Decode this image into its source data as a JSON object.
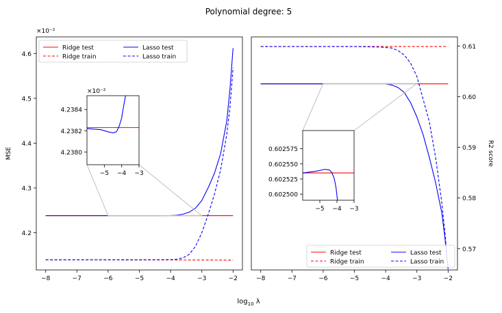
{
  "figure": {
    "suptitle": "Polynomial degree: 5",
    "xlabel": "log$_{10}$ λ",
    "xlabel_display": "log10 λ"
  },
  "colors": {
    "ridge": "#ff0000",
    "lasso": "#0000ff",
    "zoom_lines": "#bfbfbf",
    "axes": "#000000"
  },
  "chart_data": [
    {
      "id": "mse",
      "type": "line",
      "title": "",
      "xlabel": "log10 λ",
      "ylabel": "MSE",
      "offset_text": "×10⁻²",
      "xlim": [
        -8.3,
        -1.7
      ],
      "ylim": [
        4.117,
        4.637
      ],
      "xticks": [
        -8,
        -7,
        -6,
        -5,
        -4,
        -3,
        -2
      ],
      "xtick_labels": [
        "−8",
        "−7",
        "−6",
        "−5",
        "−4",
        "−3",
        "−2"
      ],
      "yticks": [
        4.2,
        4.3,
        4.4,
        4.5,
        4.6
      ],
      "ytick_labels": [
        "4.2",
        "4.3",
        "4.4",
        "4.5",
        "4.6"
      ],
      "legend": {
        "location": "upper-left",
        "ncol": 2
      },
      "series": [
        {
          "name": "Ridge test",
          "color": "#ff0000",
          "dash": "solid",
          "x": [
            -8,
            -6,
            -4,
            -3,
            -2
          ],
          "y": [
            4.2382,
            4.2382,
            4.2382,
            4.2382,
            4.2382
          ]
        },
        {
          "name": "Ridge train",
          "color": "#ff0000",
          "dash": "dashed",
          "x": [
            -8,
            -6,
            -4,
            -3,
            -2
          ],
          "y": [
            4.1395,
            4.1395,
            4.1394,
            4.1392,
            4.139
          ]
        },
        {
          "name": "Lasso test",
          "color": "#0000ff",
          "dash": "solid",
          "x": [
            -8,
            -6,
            -5,
            -4.5,
            -4,
            -3.8,
            -3.6,
            -3.4,
            -3.2,
            -3.0,
            -2.8,
            -2.6,
            -2.4,
            -2.2,
            -2.1,
            -2.0
          ],
          "y": [
            4.2381,
            4.2381,
            4.2381,
            4.2381,
            4.2383,
            4.2392,
            4.2415,
            4.246,
            4.255,
            4.272,
            4.3,
            4.332,
            4.376,
            4.45,
            4.52,
            4.612
          ]
        },
        {
          "name": "Lasso train",
          "color": "#0000ff",
          "dash": "dashed",
          "x": [
            -8,
            -6,
            -5,
            -4.5,
            -4,
            -3.8,
            -3.6,
            -3.4,
            -3.2,
            -3.0,
            -2.8,
            -2.6,
            -2.4,
            -2.2,
            -2.1,
            -2.0
          ],
          "y": [
            4.1397,
            4.1397,
            4.1397,
            4.1398,
            4.14,
            4.141,
            4.144,
            4.152,
            4.17,
            4.2,
            4.24,
            4.285,
            4.34,
            4.42,
            4.48,
            4.568
          ]
        }
      ],
      "inset": {
        "offset_text": "×10⁻²",
        "xlim": [
          -6,
          -3
        ],
        "ylim": [
          4.23788,
          4.23853
        ],
        "xticks": [
          -5,
          -4,
          -3
        ],
        "xtick_labels": [
          "−5",
          "−4",
          "−3"
        ],
        "yticks": [
          4.238,
          4.2382,
          4.2384
        ],
        "ytick_labels": [
          "4.2380",
          "4.2382",
          "4.2384"
        ],
        "series": [
          {
            "name": "Ridge test",
            "color": "#ff0000",
            "dash": "solid",
            "x": [
              -6,
              -3
            ],
            "y": [
              4.23823,
              4.23823
            ]
          },
          {
            "name": "Lasso test",
            "color": "#0000ff",
            "dash": "solid",
            "x": [
              -6,
              -5.2,
              -4.8,
              -4.5,
              -4.3,
              -4.15,
              -4.0,
              -3.9,
              -3.8,
              -3.7
            ],
            "y": [
              4.23822,
              4.23821,
              4.23819,
              4.23818,
              4.23819,
              4.23824,
              4.23832,
              4.23842,
              4.23851,
              4.2386
            ]
          }
        ]
      }
    },
    {
      "id": "r2",
      "type": "line",
      "title": "",
      "xlabel": "log10 λ",
      "ylabel": "R2 score",
      "xlim": [
        -8.3,
        -1.7
      ],
      "ylim": [
        0.5658,
        0.6118
      ],
      "xticks": [
        -8,
        -7,
        -6,
        -5,
        -4,
        -3,
        -2
      ],
      "xtick_labels": [
        "−8",
        "−7",
        "−6",
        "−5",
        "−4",
        "−3",
        "−2"
      ],
      "yticks": [
        0.57,
        0.58,
        0.59,
        0.6,
        0.61
      ],
      "ytick_labels": [
        "0.57",
        "0.58",
        "0.59",
        "0.60",
        "0.61"
      ],
      "legend": {
        "location": "lower-right",
        "ncol": 2
      },
      "series": [
        {
          "name": "Ridge test",
          "color": "#ff0000",
          "dash": "solid",
          "x": [
            -8,
            -4,
            -2
          ],
          "y": [
            0.60254,
            0.60254,
            0.60254
          ]
        },
        {
          "name": "Ridge train",
          "color": "#ff0000",
          "dash": "dashed",
          "x": [
            -8,
            -4,
            -2
          ],
          "y": [
            0.6099,
            0.6099,
            0.6099
          ]
        },
        {
          "name": "Lasso test",
          "color": "#0000ff",
          "dash": "solid",
          "x": [
            -8,
            -5,
            -4.3,
            -4.0,
            -3.8,
            -3.6,
            -3.4,
            -3.2,
            -3.0,
            -2.8,
            -2.6,
            -2.4,
            -2.2,
            -2.1,
            -2.0
          ],
          "y": [
            0.60254,
            0.60254,
            0.60254,
            0.6025,
            0.6023,
            0.6018,
            0.6008,
            0.5988,
            0.596,
            0.5925,
            0.588,
            0.583,
            0.577,
            0.572,
            0.566
          ]
        },
        {
          "name": "Lasso train",
          "color": "#0000ff",
          "dash": "dashed",
          "x": [
            -8,
            -5,
            -4.2,
            -3.8,
            -3.6,
            -3.4,
            -3.2,
            -3.0,
            -2.8,
            -2.6,
            -2.4,
            -2.2,
            -2.1,
            -2.0
          ],
          "y": [
            0.6099,
            0.6099,
            0.6098,
            0.6096,
            0.6091,
            0.6082,
            0.6066,
            0.604,
            0.5995,
            0.595,
            0.588,
            0.579,
            0.573,
            0.566
          ]
        }
      ],
      "inset": {
        "xlim": [
          -6,
          -3
        ],
        "ylim": [
          0.60249,
          0.602605
        ],
        "xticks": [
          -5,
          -4,
          -3
        ],
        "xtick_labels": [
          "−5",
          "−4",
          "−3"
        ],
        "yticks": [
          0.6025,
          0.602525,
          0.60255,
          0.602575
        ],
        "ytick_labels": [
          "0.602500",
          "0.602525",
          "0.602550",
          "0.602575"
        ],
        "series": [
          {
            "name": "Ridge test",
            "color": "#ff0000",
            "dash": "solid",
            "x": [
              -6,
              -3
            ],
            "y": [
              0.602535,
              0.602535
            ]
          },
          {
            "name": "Lasso test",
            "color": "#0000ff",
            "dash": "solid",
            "x": [
              -6,
              -5.2,
              -4.7,
              -4.45,
              -4.3,
              -4.15,
              -4.05,
              -3.95
            ],
            "y": [
              0.602535,
              0.602538,
              0.602541,
              0.60254,
              0.602536,
              0.602525,
              0.60251,
              0.602485
            ]
          }
        ]
      }
    }
  ]
}
